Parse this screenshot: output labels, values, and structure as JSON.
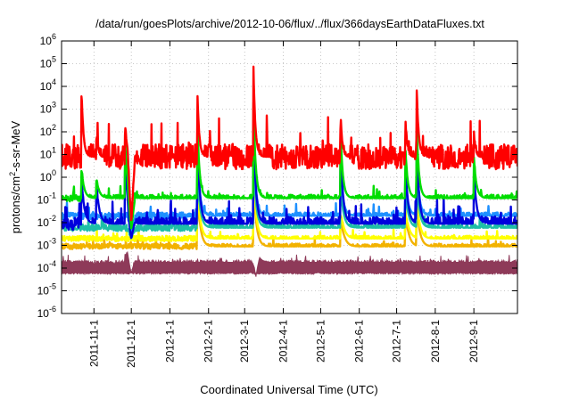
{
  "chart_data": {
    "type": "line",
    "title": "/data/run/goesPlots/archive/2012-10-06/flux/../flux/366daysEarthDataFluxes.txt",
    "xlabel": "Coordinated Universal Time (UTC)",
    "ylabel": "protons/cm2-s-sr-MeV",
    "ylabel_base": "protons/cm",
    "ylabel_sup": "2",
    "ylabel_rest": "-s-sr-MeV",
    "yscale": "log",
    "ylim": [
      1e-06,
      1000000.0
    ],
    "xlim": [
      "2011-10-06",
      "2012-10-06"
    ],
    "y_ticks": [
      {
        "value": 1e-06,
        "base": "10",
        "exp": "-6"
      },
      {
        "value": 1e-05,
        "base": "10",
        "exp": "-5"
      },
      {
        "value": 0.0001,
        "base": "10",
        "exp": "-4"
      },
      {
        "value": 0.001,
        "base": "10",
        "exp": "-3"
      },
      {
        "value": 0.01,
        "base": "10",
        "exp": "-2"
      },
      {
        "value": 0.1,
        "base": "10",
        "exp": "-1"
      },
      {
        "value": 1,
        "base": "10",
        "exp": "0"
      },
      {
        "value": 10,
        "base": "10",
        "exp": "1"
      },
      {
        "value": 100,
        "base": "10",
        "exp": "2"
      },
      {
        "value": 1000,
        "base": "10",
        "exp": "3"
      },
      {
        "value": 10000,
        "base": "10",
        "exp": "4"
      },
      {
        "value": 100000,
        "base": "10",
        "exp": "5"
      },
      {
        "value": 1000000,
        "base": "10",
        "exp": "6"
      }
    ],
    "x_ticks": [
      {
        "date": "2011-11-01",
        "label": "2011-11-1"
      },
      {
        "date": "2011-12-01",
        "label": "2011-12-1"
      },
      {
        "date": "2012-01-01",
        "label": "2012-1-1"
      },
      {
        "date": "2012-02-01",
        "label": "2012-2-1"
      },
      {
        "date": "2012-03-01",
        "label": "2012-3-1"
      },
      {
        "date": "2012-04-01",
        "label": "2012-4-1"
      },
      {
        "date": "2012-05-01",
        "label": "2012-5-1"
      },
      {
        "date": "2012-06-01",
        "label": "2012-6-1"
      },
      {
        "date": "2012-07-01",
        "label": "2012-7-1"
      },
      {
        "date": "2012-08-01",
        "label": "2012-8-1"
      },
      {
        "date": "2012-09-01",
        "label": "2012-9-1"
      }
    ],
    "grid": true,
    "series": [
      {
        "color": "#8e3a59",
        "base": 0.00018,
        "noise": 0.1,
        "events": [
          {
            "date": "2011-11-26",
            "peak": 0.0002
          },
          {
            "date": "2012-03-08",
            "peak": 0.0002
          }
        ],
        "dips": [
          {
            "date": "2011-12-01",
            "min": 6e-05
          },
          {
            "date": "2012-03-10",
            "min": 4e-05
          }
        ],
        "lower_value": 6e-05
      },
      {
        "color": "#f2b200",
        "base": 0.0009,
        "noise": 0.12,
        "events": [
          {
            "date": "2012-01-23",
            "peak": 0.3
          },
          {
            "date": "2012-03-08",
            "peak": 1
          },
          {
            "date": "2012-05-17",
            "peak": 0.01
          },
          {
            "date": "2012-07-08",
            "peak": 0.02
          },
          {
            "date": "2012-07-17",
            "peak": 0.05
          }
        ],
        "dips": [],
        "lower_value": null
      },
      {
        "color": "#ffff00",
        "base": 0.002,
        "noise": 0.12,
        "events": [
          {
            "date": "2012-01-23",
            "peak": 0.5
          },
          {
            "date": "2012-03-08",
            "peak": 2
          },
          {
            "date": "2012-05-17",
            "peak": 0.02
          },
          {
            "date": "2012-07-08",
            "peak": 0.03
          },
          {
            "date": "2012-07-17",
            "peak": 0.1
          }
        ],
        "dips": [],
        "lower_value": null
      },
      {
        "color": "#1ebfa7",
        "base": 0.006,
        "noise": 0.15,
        "events": [
          {
            "date": "2012-01-23",
            "peak": 3
          },
          {
            "date": "2012-03-08",
            "peak": 10
          },
          {
            "date": "2012-05-17",
            "peak": 0.5
          },
          {
            "date": "2012-07-08",
            "peak": 0.3
          },
          {
            "date": "2012-07-17",
            "peak": 1
          }
        ],
        "dips": [
          {
            "date": "2011-12-01",
            "min": 0.002
          }
        ],
        "lower_value": null
      },
      {
        "color": "#1e90ff",
        "base": 0.02,
        "noise": 0.15,
        "events": [
          {
            "date": "2012-01-23",
            "peak": 20
          },
          {
            "date": "2012-03-08",
            "peak": 100
          },
          {
            "date": "2012-05-17",
            "peak": 2
          },
          {
            "date": "2012-07-08",
            "peak": 1
          },
          {
            "date": "2012-07-17",
            "peak": 10
          }
        ],
        "dips": [
          {
            "date": "2011-12-01",
            "min": 0.003
          }
        ],
        "lower_value": null
      },
      {
        "color": "#0000dd",
        "base": 0.009,
        "noise": 0.3,
        "events": [
          {
            "date": "2011-10-22",
            "peak": 1
          },
          {
            "date": "2011-11-03",
            "peak": 0.5
          },
          {
            "date": "2011-11-26",
            "peak": 20
          },
          {
            "date": "2012-01-23",
            "peak": 100
          },
          {
            "date": "2012-03-08",
            "peak": 500
          },
          {
            "date": "2012-05-17",
            "peak": 30
          },
          {
            "date": "2012-07-08",
            "peak": 5
          },
          {
            "date": "2012-07-17",
            "peak": 50
          },
          {
            "date": "2012-09-01",
            "peak": 2
          }
        ],
        "dips": [
          {
            "date": "2011-12-01",
            "min": 0.002
          }
        ],
        "lower_value": null
      },
      {
        "color": "#00dd00",
        "base": 0.12,
        "noise": 0.15,
        "events": [
          {
            "date": "2011-10-22",
            "peak": 3
          },
          {
            "date": "2011-11-03",
            "peak": 1
          },
          {
            "date": "2011-11-26",
            "peak": 50
          },
          {
            "date": "2012-01-23",
            "peak": 300
          },
          {
            "date": "2012-03-08",
            "peak": 3000
          },
          {
            "date": "2012-05-17",
            "peak": 100
          },
          {
            "date": "2012-07-08",
            "peak": 20
          },
          {
            "date": "2012-07-17",
            "peak": 300
          },
          {
            "date": "2012-09-01",
            "peak": 10
          }
        ],
        "dips": [
          {
            "date": "2011-12-01",
            "min": 0.005
          }
        ],
        "lower_value": null
      },
      {
        "color": "#ff0000",
        "base": 8,
        "noise": 0.55,
        "events": [
          {
            "date": "2011-10-22",
            "peak": 10000
          },
          {
            "date": "2011-11-03",
            "peak": 100
          },
          {
            "date": "2011-11-26",
            "peak": 300
          },
          {
            "date": "2012-01-23",
            "peak": 6000
          },
          {
            "date": "2012-03-08",
            "peak": 90000
          },
          {
            "date": "2012-05-17",
            "peak": 500
          },
          {
            "date": "2012-07-08",
            "peak": 500
          },
          {
            "date": "2012-07-17",
            "peak": 15000
          },
          {
            "date": "2012-09-01",
            "peak": 100
          }
        ],
        "dips": [
          {
            "date": "2011-12-01",
            "min": 0.01
          }
        ],
        "lower_value": null
      }
    ]
  }
}
